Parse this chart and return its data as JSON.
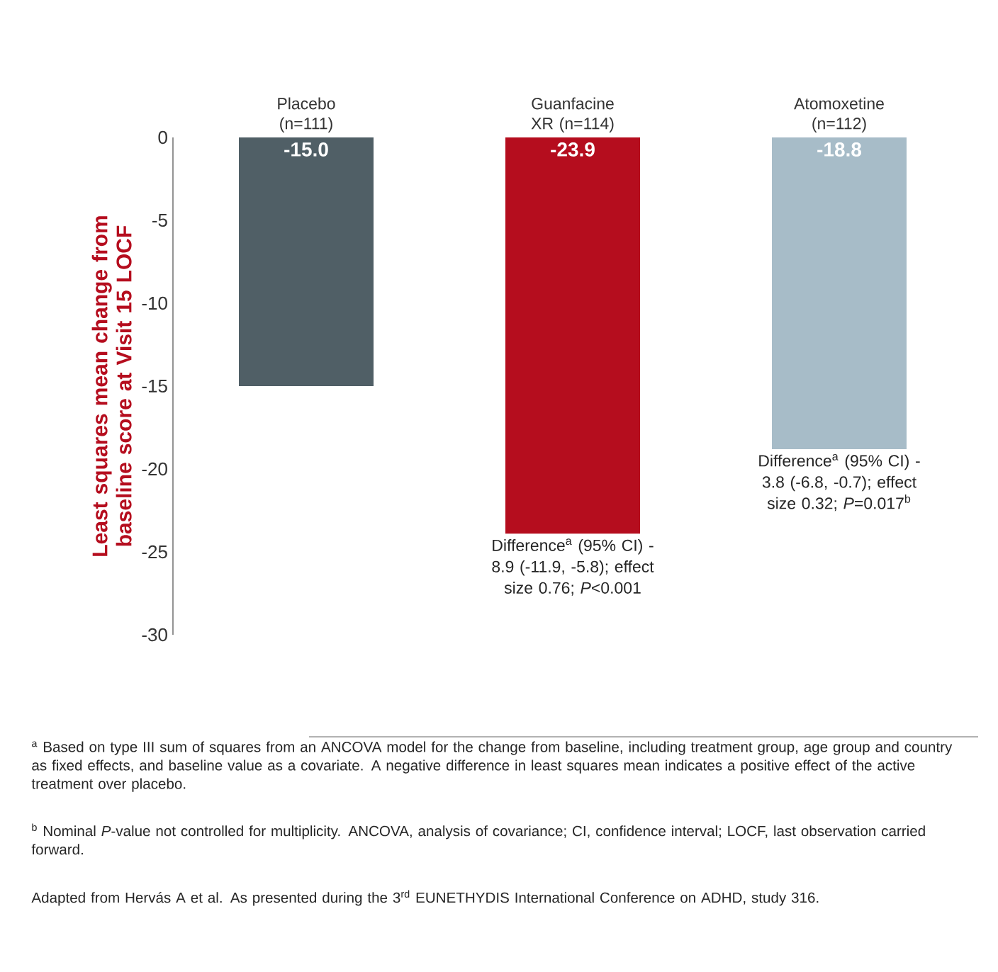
{
  "chart_data": {
    "type": "bar",
    "ylabel": "Least squares mean change from baseline score at Visit 15 LOCF",
    "categories": [
      "Placebo (n=111)",
      "Guanfacine XR (n=114)",
      "Atomoxetine (n=112)"
    ],
    "values": [
      -15.0,
      -23.9,
      -18.8
    ],
    "colors": [
      "#505f66",
      "#b50d1e",
      "#a7bcc8"
    ],
    "value_labels": [
      "-15.0",
      "-23.9",
      "-18.8"
    ],
    "ylim": [
      -30,
      0
    ],
    "yticks": [
      0,
      -5,
      -10,
      -15,
      -20,
      -25,
      -30
    ],
    "annotations": [
      {
        "text": "Difference$^{a}$ (95% CI) -8.9 (-11.9, -5.8); effect size 0.76; *P*<0.001",
        "x": "Guanfacine XR (n=114)",
        "y": -23.9
      },
      {
        "text": "Difference$^{a}$ (95% CI) -3.8 (-6.8, -0.7); effect size 0.32; *P*=0.017$^{b}$",
        "x": "Atomoxetine (n=112)",
        "y": -18.8
      },
      "$^{a}$ Based on type III sum of squares from an ANCOVA model for the change from baseline, including treatment group, age group and country as fixed effects, and baseline value as a covariate. A negative difference in least squares mean indicates a positive effect of the active treatment over placebo.",
      "$^{b}$ Nominal *P*-value not controlled for multiplicity. ANCOVA, analysis of covariance; CI, confidence interval; LOCF, last observation carried forward.",
      "Adapted from Hervás A et al. As presented during the 3$^{rd}$ EUNETHYDIS International Conference on ADHD, study 316."
    ]
  }
}
